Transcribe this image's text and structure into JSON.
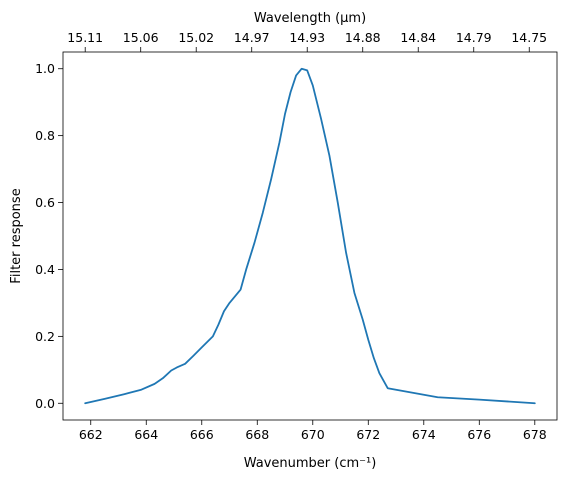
{
  "chart_data": {
    "type": "line",
    "title": "",
    "xlabel": "Wavenumber (cm⁻¹)",
    "ylabel": "Filter response",
    "top_xlabel": "Wavelength (μm)",
    "xlim": [
      661.0,
      678.8
    ],
    "ylim": [
      -0.05,
      1.05
    ],
    "x_ticks": [
      662,
      664,
      666,
      668,
      670,
      672,
      674,
      676,
      678
    ],
    "y_ticks": [
      0.0,
      0.2,
      0.4,
      0.6,
      0.8,
      1.0
    ],
    "top_ticks": [
      {
        "x": 661.8,
        "label": "15.11"
      },
      {
        "x": 663.8,
        "label": "15.06"
      },
      {
        "x": 665.8,
        "label": "15.02"
      },
      {
        "x": 667.8,
        "label": "14.97"
      },
      {
        "x": 669.8,
        "label": "14.93"
      },
      {
        "x": 671.8,
        "label": "14.88"
      },
      {
        "x": 673.8,
        "label": "14.84"
      },
      {
        "x": 675.8,
        "label": "14.79"
      },
      {
        "x": 677.8,
        "label": "14.75"
      }
    ],
    "grid": false,
    "series": [
      {
        "color": "#1f77b4",
        "x": [
          661.8,
          662.5,
          663.2,
          663.8,
          664.3,
          664.6,
          664.9,
          665.1,
          665.4,
          665.7,
          666.0,
          666.4,
          666.6,
          666.8,
          667.0,
          667.4,
          667.6,
          667.9,
          668.2,
          668.5,
          668.8,
          669.0,
          669.2,
          669.4,
          669.6,
          669.8,
          670.0,
          670.3,
          670.6,
          670.9,
          671.2,
          671.5,
          671.8,
          672.0,
          672.2,
          672.4,
          672.7,
          673.5,
          674.5,
          676.0,
          678.0
        ],
        "y": [
          0.0,
          0.013,
          0.027,
          0.04,
          0.058,
          0.075,
          0.098,
          0.107,
          0.118,
          0.142,
          0.167,
          0.2,
          0.235,
          0.275,
          0.3,
          0.34,
          0.4,
          0.48,
          0.57,
          0.67,
          0.78,
          0.865,
          0.93,
          0.98,
          1.0,
          0.995,
          0.95,
          0.85,
          0.74,
          0.6,
          0.45,
          0.33,
          0.25,
          0.19,
          0.135,
          0.09,
          0.045,
          0.033,
          0.018,
          0.011,
          0.0
        ]
      }
    ]
  }
}
